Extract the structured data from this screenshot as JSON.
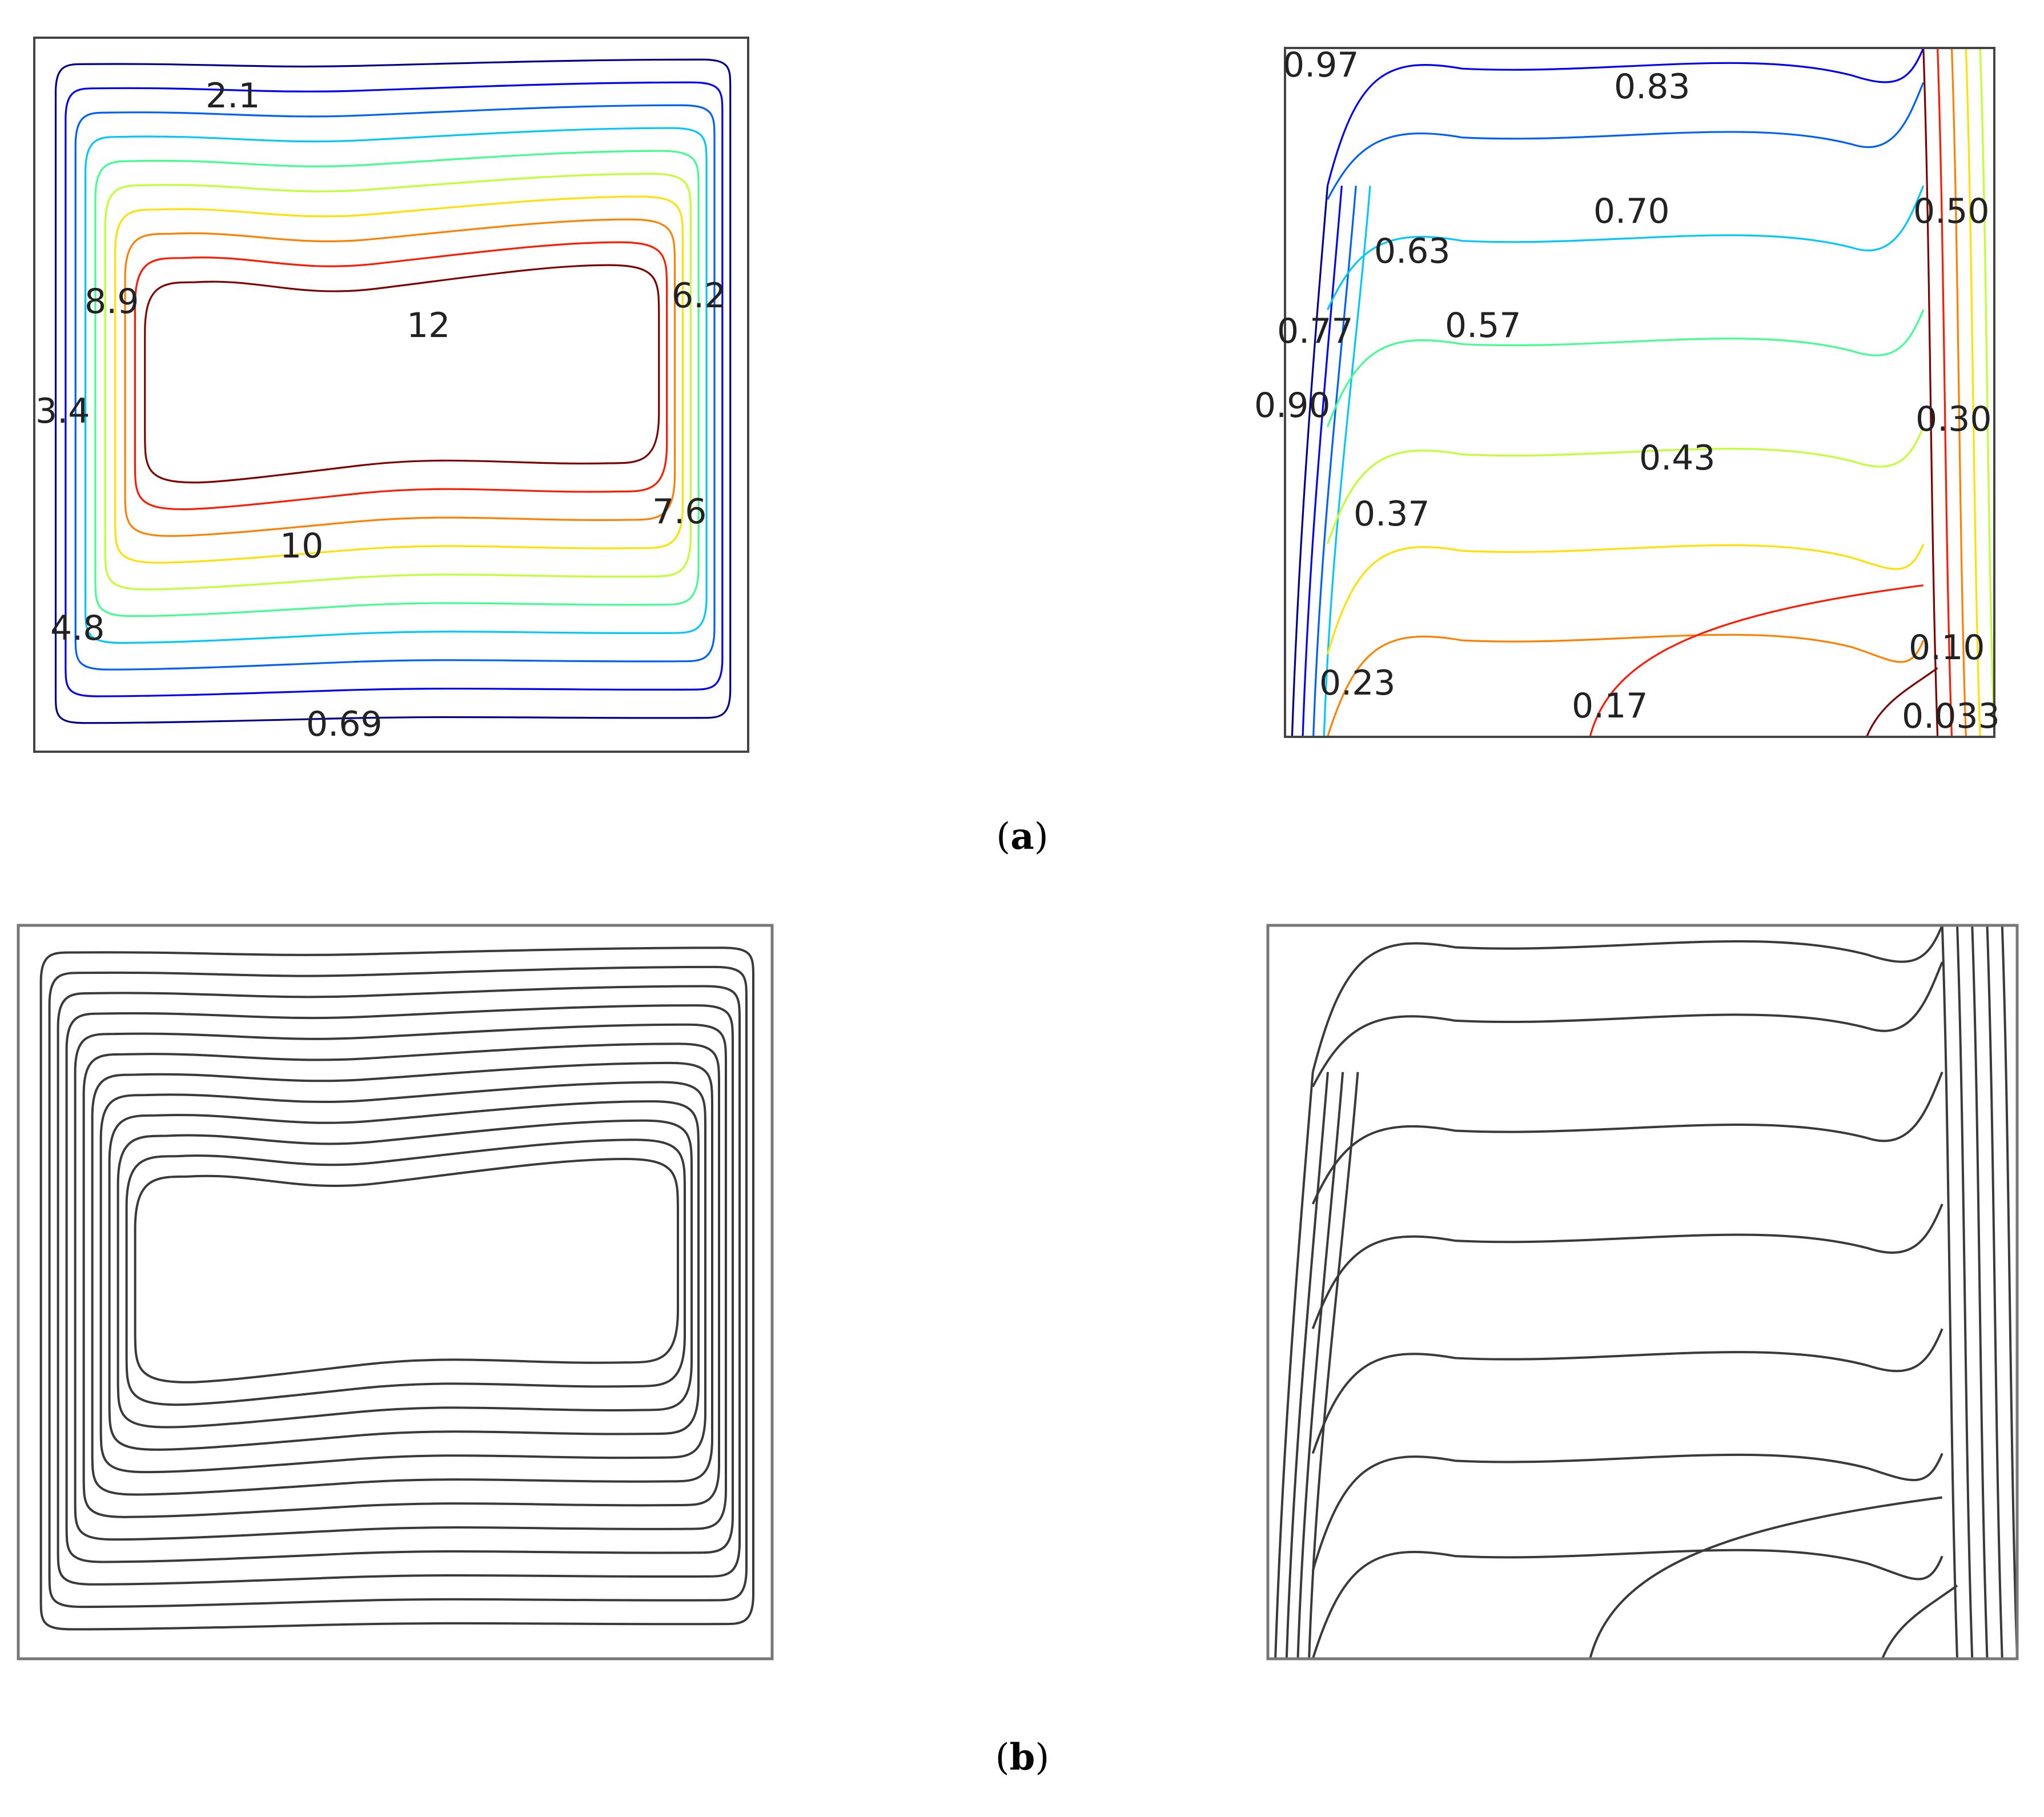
{
  "captions": {
    "a": "a",
    "b": "b"
  },
  "colors": {
    "levels": [
      "#00008f",
      "#0000ff",
      "#0060ff",
      "#00c8ff",
      "#40ff90",
      "#c0ff30",
      "#ffe000",
      "#ff8000",
      "#ff1a00",
      "#800000"
    ],
    "bw": "#3a3a3a"
  },
  "chart_data": [
    {
      "panel": "a-left",
      "type": "contour",
      "field": "streamlines",
      "style": "colored",
      "contour_labels": [
        "2.1",
        "8.9",
        "12",
        "6.2",
        "3.4",
        "7.6",
        "10",
        "4.8",
        "0.69"
      ]
    },
    {
      "panel": "a-right",
      "type": "contour",
      "field": "isotherms",
      "style": "colored",
      "contour_labels": [
        "0.97",
        "0.83",
        "0.70",
        "0.50",
        "0.63",
        "0.77",
        "0.57",
        "0.90",
        "0.30",
        "0.43",
        "0.37",
        "0.10",
        "0.23",
        "0.17",
        "0.033"
      ]
    },
    {
      "panel": "b-left",
      "type": "contour",
      "field": "streamlines",
      "style": "monochrome",
      "contour_labels": []
    },
    {
      "panel": "b-right",
      "type": "contour",
      "field": "isotherms",
      "style": "monochrome",
      "contour_labels": []
    }
  ]
}
